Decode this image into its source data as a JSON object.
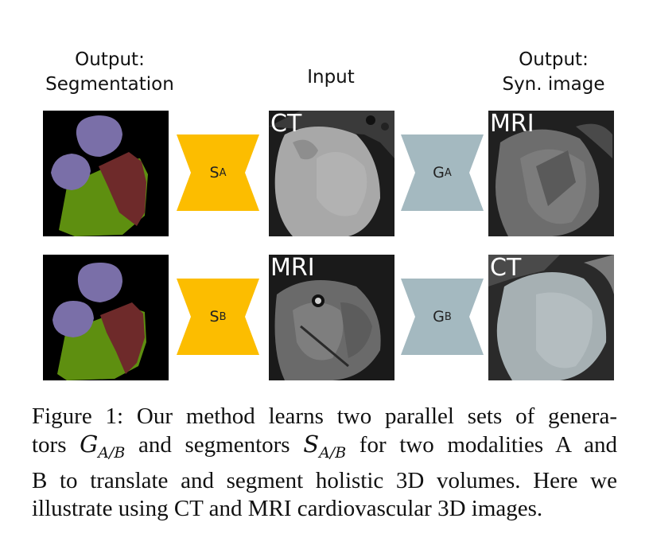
{
  "headings": {
    "segmentation": [
      "Output:",
      "Segmentation"
    ],
    "input": [
      "Input"
    ],
    "synthetic": [
      "Output:",
      "Syn. image"
    ]
  },
  "rows": [
    {
      "input_label": "CT",
      "segmentor": {
        "main": "S",
        "sub": "A"
      },
      "generator": {
        "main": "G",
        "sub": "A"
      },
      "output_label": "MRI"
    },
    {
      "input_label": "MRI",
      "segmentor": {
        "main": "S",
        "sub": "B"
      },
      "generator": {
        "main": "G",
        "sub": "B"
      },
      "output_label": "CT"
    }
  ],
  "colors": {
    "segmentor": "#fcbd00",
    "generator": "#a4b9c0",
    "seg_purple": "#7a6fa8",
    "seg_red": "#6e2a2a",
    "seg_green": "#5e8f10"
  },
  "caption": {
    "line1": "Figure 1:  Our method learns two parallel sets of genera-",
    "line2_a": "tors ",
    "g_main": "G",
    "g_sub": "A/B",
    "line2_b": " and segmentors ",
    "s_main": "S",
    "s_sub": "A/B",
    "line2_c": " for two modalities A and",
    "line3": "B to translate and segment holistic 3D volumes.  Here we",
    "line4": "illustrate using CT and MRI cardiovascular 3D images."
  }
}
